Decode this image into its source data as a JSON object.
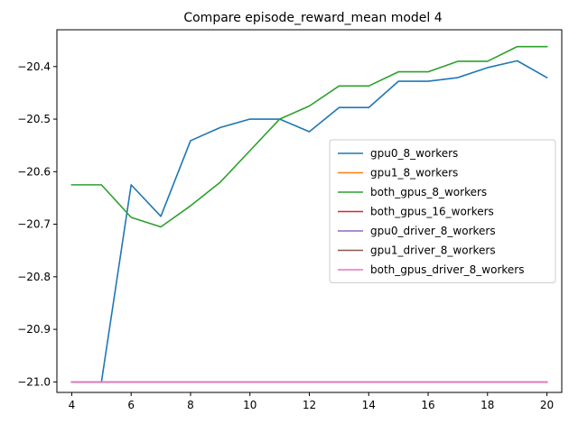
{
  "chart_data": {
    "type": "line",
    "title": "Compare episode_reward_mean model 4",
    "xlabel": "",
    "ylabel": "",
    "xlim": [
      3.5,
      20.5
    ],
    "ylim": [
      -21.02,
      -20.33
    ],
    "x_ticks": [
      4,
      6,
      8,
      10,
      12,
      14,
      16,
      18,
      20
    ],
    "y_ticks": [
      -21.0,
      -20.9,
      -20.8,
      -20.7,
      -20.6,
      -20.5,
      -20.4
    ],
    "y_tick_labels": [
      "−21.0",
      "−20.9",
      "−20.8",
      "−20.7",
      "−20.6",
      "−20.5",
      "−20.4"
    ],
    "grid": false,
    "legend_position": "center-right",
    "x": [
      4,
      5,
      6,
      7,
      8,
      9,
      10,
      11,
      12,
      13,
      14,
      15,
      16,
      17,
      18,
      19,
      20
    ],
    "series": [
      {
        "name": "gpu0_8_workers",
        "color": "#1f77b4",
        "values": [
          -21.0,
          -21.0,
          -20.625,
          -20.685,
          -20.541,
          -20.516,
          -20.5,
          -20.5,
          -20.524,
          -20.478,
          -20.478,
          -20.428,
          -20.428,
          -20.421,
          -20.402,
          -20.389,
          -20.421
        ]
      },
      {
        "name": "gpu1_8_workers",
        "color": "#ff7f0e",
        "values": [
          -21.0,
          -21.0,
          -21.0,
          -21.0,
          -21.0,
          -21.0,
          -21.0,
          -21.0,
          -21.0,
          -21.0,
          -21.0,
          -21.0,
          -21.0,
          -21.0,
          -21.0,
          -21.0,
          -21.0
        ]
      },
      {
        "name": "both_gpus_8_workers",
        "color": "#2ca02c",
        "values": [
          -20.625,
          -20.625,
          -20.687,
          -20.705,
          -20.665,
          -20.62,
          -20.56,
          -20.5,
          -20.475,
          -20.437,
          -20.437,
          -20.41,
          -20.41,
          -20.39,
          -20.39,
          -20.362,
          -20.362
        ]
      },
      {
        "name": "both_gpus_16_workers",
        "color": "#d62728",
        "values": [
          -21.0,
          -21.0,
          -21.0,
          -21.0,
          -21.0,
          -21.0,
          -21.0,
          -21.0,
          -21.0,
          -21.0,
          -21.0,
          -21.0,
          -21.0,
          -21.0,
          -21.0,
          -21.0,
          -21.0
        ]
      },
      {
        "name": "gpu0_driver_8_workers",
        "color": "#9467bd",
        "values": [
          -21.0,
          -21.0,
          -21.0,
          -21.0,
          -21.0,
          -21.0,
          -21.0,
          -21.0,
          -21.0,
          -21.0,
          -21.0,
          -21.0,
          -21.0,
          -21.0,
          -21.0,
          -21.0,
          -21.0
        ]
      },
      {
        "name": "gpu1_driver_8_workers",
        "color": "#8c564b",
        "values": [
          -21.0,
          -21.0,
          -21.0,
          -21.0,
          -21.0,
          -21.0,
          -21.0,
          -21.0,
          -21.0,
          -21.0,
          -21.0,
          -21.0,
          -21.0,
          -21.0,
          -21.0,
          -21.0,
          -21.0
        ]
      },
      {
        "name": "both_gpus_driver_8_workers",
        "color": "#e377c2",
        "values": [
          -21.0,
          -21.0,
          -21.0,
          -21.0,
          -21.0,
          -21.0,
          -21.0,
          -21.0,
          -21.0,
          -21.0,
          -21.0,
          -21.0,
          -21.0,
          -21.0,
          -21.0,
          -21.0,
          -21.0
        ]
      }
    ]
  }
}
